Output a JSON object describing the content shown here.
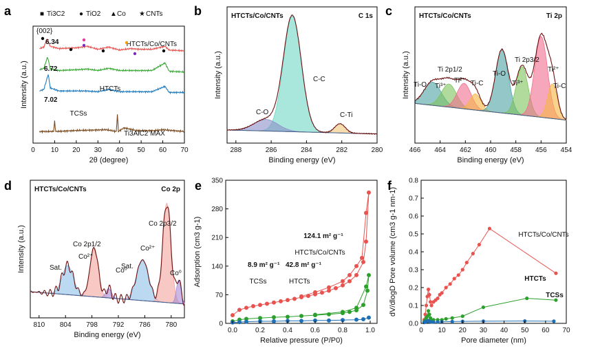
{
  "figure": {
    "panels": [
      {
        "id": "a",
        "letter": "a"
      },
      {
        "id": "b",
        "letter": "b",
        "title_left": "HTCTs/Co/CNTs",
        "title_right": "C 1s"
      },
      {
        "id": "c",
        "letter": "c",
        "title_left": "HTCTs/Co/CNTs",
        "title_right": "Ti 2p"
      },
      {
        "id": "d",
        "letter": "d",
        "title_left": "HTCTs/Co/CNTs",
        "title_right": "Co 2p"
      },
      {
        "id": "e",
        "letter": "e"
      },
      {
        "id": "f",
        "letter": "f"
      }
    ]
  },
  "chart_data": [
    {
      "panel": "a",
      "type": "line",
      "xlabel": "2θ (degree)",
      "ylabel": "Intensity (a.u.)",
      "xlim": [
        0,
        70
      ],
      "xticks": [
        "0",
        "10",
        "20",
        "30",
        "40",
        "50",
        "60",
        "70"
      ],
      "legend": [
        {
          "marker": "■",
          "text": "Ti3C2",
          "color": "#000000"
        },
        {
          "marker": "●",
          "text": "TiO2",
          "color": "#7b2cbf"
        },
        {
          "marker": "▲",
          "text": "Co",
          "color": "#f39c12"
        },
        {
          "marker": "★",
          "text": "CNTs",
          "color": "#e6399b"
        }
      ],
      "annotations": [
        "{002}",
        "6.34",
        "6.72",
        "7.02"
      ],
      "series": [
        {
          "name": "HTCTs/Co/CNTs",
          "color": "#e8534f",
          "offset": 4,
          "x": [
            3,
            5,
            6.34,
            8,
            12,
            20,
            25,
            30,
            35,
            40,
            45,
            50,
            55,
            61,
            63,
            70
          ],
          "y": [
            0.3,
            0.4,
            0.9,
            0.45,
            0.3,
            0.35,
            0.45,
            0.25,
            0.4,
            0.2,
            0.3,
            0.25,
            0.25,
            0.45,
            0.2,
            0.15
          ]
        },
        {
          "name": "HTCTs",
          "color": "#3aa935",
          "offset": 3,
          "x": [
            3,
            5,
            6.72,
            8,
            12,
            20,
            25,
            30,
            35,
            40,
            45,
            50,
            55,
            61,
            63,
            70
          ],
          "y": [
            0.25,
            0.35,
            1.1,
            0.3,
            0.2,
            0.25,
            0.3,
            0.2,
            0.35,
            0.2,
            0.2,
            0.2,
            0.2,
            0.7,
            0.15,
            0.1
          ]
        },
        {
          "name": "TCSs",
          "color": "#1f7bc0",
          "offset": 2,
          "x": [
            3,
            5,
            7.02,
            8,
            12,
            20,
            25,
            30,
            35,
            40,
            45,
            50,
            55,
            61,
            63,
            70
          ],
          "y": [
            0.2,
            0.3,
            1.3,
            0.4,
            0.2,
            0.2,
            0.2,
            0.15,
            0.3,
            0.15,
            0.15,
            0.15,
            0.15,
            0.5,
            0.1,
            0.1
          ]
        },
        {
          "name": "Ti3AlC2 MAX",
          "color": "#7a4a1e",
          "offset": 0.5,
          "x": [
            3,
            9.5,
            10,
            10.5,
            19,
            34,
            38.5,
            39,
            39.5,
            42,
            48,
            56,
            60,
            70
          ],
          "y": [
            0,
            0,
            0.55,
            0,
            0.05,
            0.1,
            0,
            0.95,
            0,
            0.2,
            0.05,
            0.05,
            0.1,
            0
          ]
        }
      ]
    },
    {
      "panel": "b",
      "type": "line",
      "xlabel": "Binding energy (eV)",
      "ylabel": "Intensity (a.u.)",
      "xlim": [
        288.5,
        280
      ],
      "xticks": [
        "288",
        "286",
        "284",
        "282",
        "280"
      ],
      "peaks": [
        {
          "name": "C-C",
          "center": 284.8,
          "fwhm": 1.2,
          "height": 1.0,
          "color": "#6fd5c5"
        },
        {
          "name": "C-O",
          "center": 286.3,
          "fwhm": 1.6,
          "height": 0.1,
          "color": "#8a8fc8"
        },
        {
          "name": "C-Ti",
          "center": 282.1,
          "fwhm": 0.7,
          "height": 0.08,
          "color": "#f2c57c"
        }
      ]
    },
    {
      "panel": "c",
      "type": "line",
      "xlabel": "Binding energy (eV)",
      "ylabel": "Intensity (a.u.)",
      "xlim": [
        466,
        454
      ],
      "xticks": [
        "466",
        "464",
        "462",
        "460",
        "458",
        "456",
        "454"
      ],
      "peak_labels": [
        {
          "text": "Ti 2p3/2",
          "color": "#8b1a1a"
        },
        {
          "text": "Ti 2p1/2",
          "color": "#8b1a1a"
        },
        {
          "text": "Ti-O",
          "color": "#2e8b9a"
        },
        {
          "text": "Ti³⁺",
          "color": "#3aa935"
        },
        {
          "text": "Ti²⁺",
          "color": "#e6399b"
        },
        {
          "text": "Ti-C",
          "color": "#f39c12"
        },
        {
          "text": "Ti-O",
          "color": "#2e8b9a"
        },
        {
          "text": "Ti³⁺",
          "color": "#3aa935"
        },
        {
          "text": "Ti²⁺",
          "color": "#e6399b"
        },
        {
          "text": "Ti-C",
          "color": "#f39c12"
        }
      ],
      "peaks": [
        {
          "center": 464.6,
          "fwhm": 1.6,
          "height": 0.2,
          "color": "#4da3a3"
        },
        {
          "center": 463.3,
          "fwhm": 1.4,
          "height": 0.2,
          "color": "#7dc35b"
        },
        {
          "center": 462.1,
          "fwhm": 1.3,
          "height": 0.22,
          "color": "#f26d8d"
        },
        {
          "center": 461.2,
          "fwhm": 1.0,
          "height": 0.14,
          "color": "#f5b642"
        },
        {
          "center": 459.1,
          "fwhm": 1.2,
          "height": 0.55,
          "color": "#4da3a3"
        },
        {
          "center": 457.5,
          "fwhm": 1.1,
          "height": 0.42,
          "color": "#7dc35b"
        },
        {
          "center": 456.0,
          "fwhm": 1.2,
          "height": 0.7,
          "color": "#f26d8d"
        },
        {
          "center": 455.1,
          "fwhm": 0.9,
          "height": 0.3,
          "color": "#f5b642"
        }
      ]
    },
    {
      "panel": "d",
      "type": "line",
      "xlabel": "Binding energy (eV)",
      "ylabel": "Intensity (a.u.)",
      "xlim": [
        812,
        777
      ],
      "xticks": [
        "810",
        "804",
        "798",
        "792",
        "786",
        "780"
      ],
      "peak_labels": [
        {
          "text": "Co 2p3/2",
          "color": "#8b1a1a"
        },
        {
          "text": "Co 2p1/2",
          "color": "#8b1a1a"
        },
        {
          "text": "Sat.",
          "color": "#1f7bc0"
        },
        {
          "text": "Co²⁺",
          "color": "#e8534f"
        },
        {
          "text": "Co⁰",
          "color": "#7b2cbf"
        },
        {
          "text": "Sat.",
          "color": "#1f7bc0"
        },
        {
          "text": "Co²⁺",
          "color": "#e8534f"
        },
        {
          "text": "Co⁰",
          "color": "#7b2cbf"
        }
      ],
      "peaks": [
        {
          "center": 803.5,
          "fwhm": 3.0,
          "height": 0.25,
          "color": "#8ec2ea"
        },
        {
          "center": 797.5,
          "fwhm": 2.2,
          "height": 0.42,
          "color": "#f3a59c"
        },
        {
          "center": 794.2,
          "fwhm": 1.5,
          "height": 0.08,
          "color": "#a78bd6"
        },
        {
          "center": 786.5,
          "fwhm": 3.2,
          "height": 0.35,
          "color": "#8ec2ea"
        },
        {
          "center": 781.0,
          "fwhm": 2.2,
          "height": 0.85,
          "color": "#f3a59c"
        },
        {
          "center": 778.3,
          "fwhm": 1.2,
          "height": 0.2,
          "color": "#a78bd6"
        }
      ]
    },
    {
      "panel": "e",
      "type": "scatter",
      "xlabel": "Relative pressure (P/P0)",
      "ylabel": "Adsorption (cm3 g-1)",
      "xlim": [
        -0.05,
        1.05
      ],
      "ylim": [
        0,
        350
      ],
      "xticks": [
        "0.0",
        "0.2",
        "0.4",
        "0.6",
        "0.8",
        "1.0"
      ],
      "yticks": [
        "0",
        "70",
        "140",
        "210",
        "280",
        "350"
      ],
      "annotations": [
        "124.1 m² g⁻¹",
        "8.9 m² g⁻¹",
        "42.8 m² g⁻¹"
      ],
      "series": [
        {
          "name": "HTCTs/Co/CNTs",
          "color": "#e8534f",
          "x": [
            0.0,
            0.05,
            0.1,
            0.15,
            0.2,
            0.25,
            0.3,
            0.35,
            0.4,
            0.45,
            0.5,
            0.55,
            0.6,
            0.65,
            0.7,
            0.75,
            0.8,
            0.85,
            0.9,
            0.95,
            0.97,
            0.99,
            0.97,
            0.94,
            0.9,
            0.85,
            0.8,
            0.7,
            0.6,
            0.5
          ],
          "y": [
            20,
            33,
            38,
            42,
            45,
            48,
            51,
            54,
            57,
            60,
            64,
            67,
            71,
            75,
            80,
            86,
            93,
            103,
            118,
            150,
            200,
            320,
            270,
            160,
            140,
            118,
            103,
            88,
            76,
            66
          ]
        },
        {
          "name": "HTCTs",
          "color": "#2ca02c",
          "x": [
            0.0,
            0.05,
            0.1,
            0.2,
            0.3,
            0.4,
            0.5,
            0.6,
            0.7,
            0.8,
            0.85,
            0.9,
            0.95,
            0.98,
            0.99,
            0.97,
            0.9,
            0.8,
            0.6
          ],
          "y": [
            5,
            9,
            11,
            13,
            15,
            16,
            18,
            20,
            22,
            25,
            28,
            32,
            45,
            80,
            118,
            90,
            38,
            28,
            21
          ]
        },
        {
          "name": "TCSs",
          "color": "#1f6fb5",
          "x": [
            0.0,
            0.05,
            0.1,
            0.2,
            0.3,
            0.4,
            0.5,
            0.6,
            0.7,
            0.8,
            0.9,
            0.95,
            0.99
          ],
          "y": [
            2,
            3,
            4,
            5,
            5,
            6,
            6,
            7,
            7,
            8,
            9,
            10,
            14
          ]
        }
      ]
    },
    {
      "panel": "f",
      "type": "line",
      "xlabel": "Pore diameter (nm)",
      "ylabel": "dV/dlogD Pore volume (cm3 g-1 nm-1)",
      "xlim": [
        0,
        70
      ],
      "ylim": [
        0,
        0.8
      ],
      "xticks": [
        "0",
        "10",
        "20",
        "30",
        "40",
        "50",
        "60",
        "70"
      ],
      "yticks": [
        "0.0",
        "0.1",
        "0.2",
        "0.3",
        "0.4",
        "0.5",
        "0.6",
        "0.7",
        "0.8"
      ],
      "series": [
        {
          "name": "HTCTs/Co/CNTs",
          "color": "#e8534f",
          "x": [
            1.5,
            2,
            2.5,
            3,
            3.5,
            4,
            4.5,
            5,
            6,
            7,
            8,
            9,
            10,
            12,
            14,
            16,
            18,
            20,
            22,
            25,
            28,
            33,
            65
          ],
          "y": [
            0.02,
            0.05,
            0.1,
            0.15,
            0.19,
            0.16,
            0.12,
            0.1,
            0.12,
            0.13,
            0.14,
            0.16,
            0.17,
            0.2,
            0.22,
            0.25,
            0.27,
            0.3,
            0.34,
            0.39,
            0.44,
            0.53,
            0.28
          ]
        },
        {
          "name": "HTCTs",
          "color": "#2ca02c",
          "x": [
            1.5,
            2,
            2.5,
            3,
            3.5,
            4,
            4.5,
            5,
            6,
            8,
            10,
            12,
            15,
            20,
            30,
            51,
            65
          ],
          "y": [
            0.01,
            0.02,
            0.03,
            0.04,
            0.07,
            0.05,
            0.03,
            0.02,
            0.02,
            0.02,
            0.02,
            0.025,
            0.03,
            0.04,
            0.09,
            0.14,
            0.13
          ]
        },
        {
          "name": "TCSs",
          "color": "#1f6fb5",
          "x": [
            1.5,
            2,
            2.5,
            3,
            3.5,
            4,
            5,
            6,
            8,
            10,
            15,
            20,
            30,
            50,
            64
          ],
          "y": [
            0.005,
            0.01,
            0.01,
            0.012,
            0.015,
            0.01,
            0.008,
            0.007,
            0.008,
            0.009,
            0.01,
            0.011,
            0.012,
            0.013,
            0.012
          ]
        }
      ]
    }
  ]
}
